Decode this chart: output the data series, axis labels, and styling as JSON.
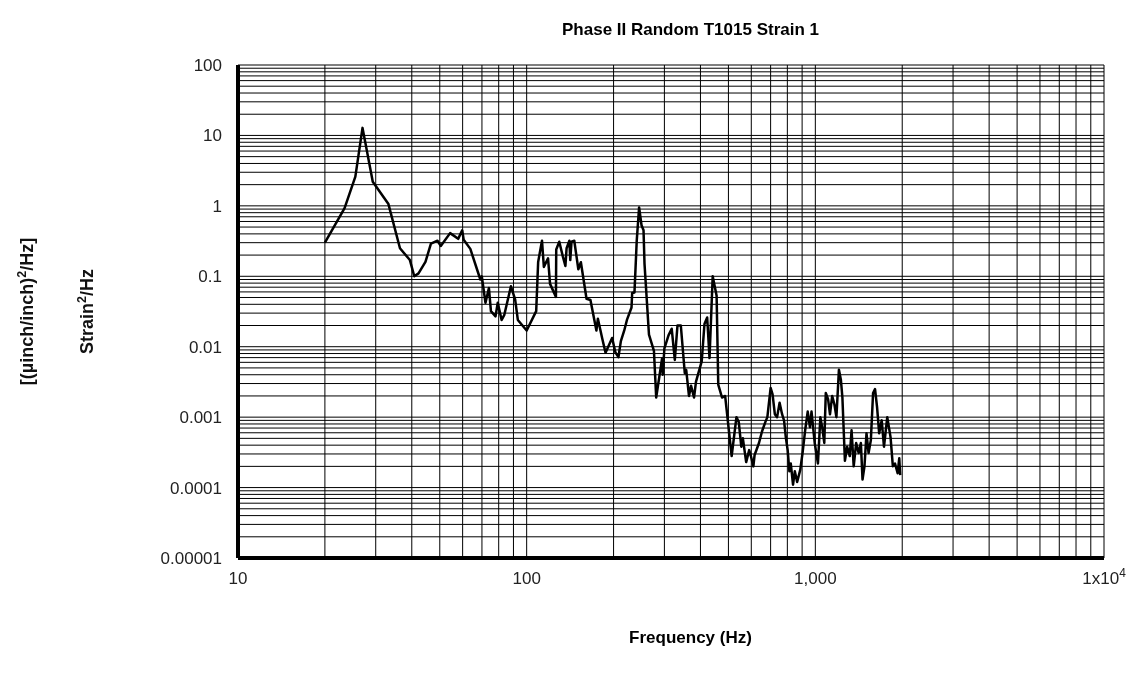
{
  "chart_data": {
    "type": "line",
    "title": "Phase II Random T1015 Strain 1",
    "xlabel": "Frequency (Hz)",
    "ylabel": "Strain$^{2}$/Hz\n[(µinch/inch)$^{2}$/Hz]",
    "log": "xy",
    "grid": true,
    "line_style": "solid",
    "xlim": [
      10,
      10000
    ],
    "xticks": [
      10,
      100,
      {
        "value": 1000,
        "label": "1,000"
      },
      {
        "value": 10000,
        "label": "1x10$^{4}$"
      }
    ],
    "ylim": [
      1e-05,
      100
    ],
    "yticks": [
      {
        "value": 1e-05,
        "label": "0.00001"
      },
      0.0001,
      0.001,
      0.01,
      0.1,
      1,
      10,
      100
    ],
    "series": [
      {
        "color": "#000000",
        "x": [
          20.0,
          23.4,
          25.5,
          27.0,
          29.3,
          33.2,
          36.4,
          39.4,
          40.8,
          42.2,
          44.6,
          46.6,
          49.1,
          50.4,
          54.3,
          57.9,
          59.8,
          60.5,
          63.8,
          69.1,
          69.9,
          72.0,
          74.0,
          75.2,
          78.0,
          79.4,
          81.9,
          83.6,
          88.2,
          91.2,
          93.2,
          100,
          107.9,
          109.6,
          113,
          114.7,
          118.6,
          120.5,
          126.3,
          126.6,
          129.7,
          133.5,
          136.2,
          137.5,
          140.6,
          141.6,
          143,
          146.2,
          151,
          154.1,
          161.2,
          166.3,
          174.4,
          176.5,
          182.8,
          187.6,
          197.7,
          203,
          207.9,
          212,
          217.8,
          222.5,
          230.8,
          232,
          236.3,
          240.6,
          245.2,
          250,
          254,
          256,
          265.3,
          276,
          281,
          294.5,
          296,
          300,
          310,
          318,
          326,
          333,
          342,
          353,
          357,
          365,
          371,
          380,
          386,
          404,
          413,
          422,
          430,
          441,
          455,
          461,
          475,
          487,
          513,
          533,
          543,
          554,
          561,
          576,
          590,
          598,
          610,
          616,
          638,
          653,
          671,
          682,
          700,
          711,
          724,
          737,
          752,
          767,
          779,
          791,
          802,
          813,
          822,
          837,
          849,
          865,
          887,
          903,
          922,
          941,
          958,
          970,
          995,
          1021,
          1041,
          1060,
          1074,
          1087,
          1107,
          1124,
          1144,
          1165,
          1183,
          1207,
          1226,
          1241,
          1266,
          1289,
          1316,
          1335,
          1358,
          1385,
          1413,
          1438,
          1457,
          1480,
          1504,
          1529,
          1557,
          1585,
          1610,
          1636,
          1664,
          1698,
          1729,
          1775,
          1822,
          1856,
          1888,
          1928,
          1953,
          1968
        ],
        "values": [
          0.3,
          0.93,
          2.6,
          12.8,
          2.2,
          1.06,
          0.25,
          0.17,
          0.1,
          0.11,
          0.16,
          0.29,
          0.32,
          0.27,
          0.41,
          0.34,
          0.45,
          0.33,
          0.245,
          0.09,
          0.1,
          0.042,
          0.068,
          0.032,
          0.027,
          0.042,
          0.024,
          0.028,
          0.072,
          0.047,
          0.024,
          0.017,
          0.032,
          0.16,
          0.32,
          0.136,
          0.18,
          0.078,
          0.051,
          0.24,
          0.31,
          0.19,
          0.14,
          0.25,
          0.32,
          0.17,
          0.31,
          0.32,
          0.126,
          0.158,
          0.048,
          0.046,
          0.017,
          0.025,
          0.013,
          0.0082,
          0.0133,
          0.0083,
          0.0071,
          0.012,
          0.017,
          0.024,
          0.036,
          0.058,
          0.059,
          0.32,
          0.95,
          0.53,
          0.45,
          0.15,
          0.0148,
          0.0087,
          0.0019,
          0.0068,
          0.004,
          0.0095,
          0.0145,
          0.018,
          0.0065,
          0.02,
          0.02,
          0.0042,
          0.0047,
          0.002,
          0.0028,
          0.0019,
          0.0032,
          0.0062,
          0.021,
          0.026,
          0.0069,
          0.1,
          0.053,
          0.0029,
          0.0019,
          0.002,
          0.00028,
          0.001,
          0.00085,
          0.00038,
          0.0005,
          0.00023,
          0.00034,
          0.00028,
          0.0002,
          0.00029,
          0.00043,
          0.00062,
          0.00085,
          0.001,
          0.0026,
          0.0021,
          0.0011,
          0.001,
          0.0016,
          0.0011,
          0.0009,
          0.0005,
          0.00034,
          0.00017,
          0.00022,
          0.00011,
          0.00017,
          0.00012,
          0.00018,
          0.00031,
          0.00065,
          0.0012,
          0.00072,
          0.0012,
          0.00043,
          0.00022,
          0.001,
          0.00065,
          0.00043,
          0.0022,
          0.0018,
          0.0011,
          0.002,
          0.0015,
          0.001,
          0.0047,
          0.0034,
          0.0019,
          0.00024,
          0.00038,
          0.00028,
          0.00065,
          0.0002,
          0.00043,
          0.00031,
          0.00043,
          0.00013,
          0.0002,
          0.00059,
          0.00031,
          0.00047,
          0.0022,
          0.0025,
          0.0014,
          0.00059,
          0.0009,
          0.00038,
          0.001,
          0.00052,
          0.0002,
          0.00022,
          0.00016,
          0.00026,
          0.00015
        ]
      }
    ]
  }
}
